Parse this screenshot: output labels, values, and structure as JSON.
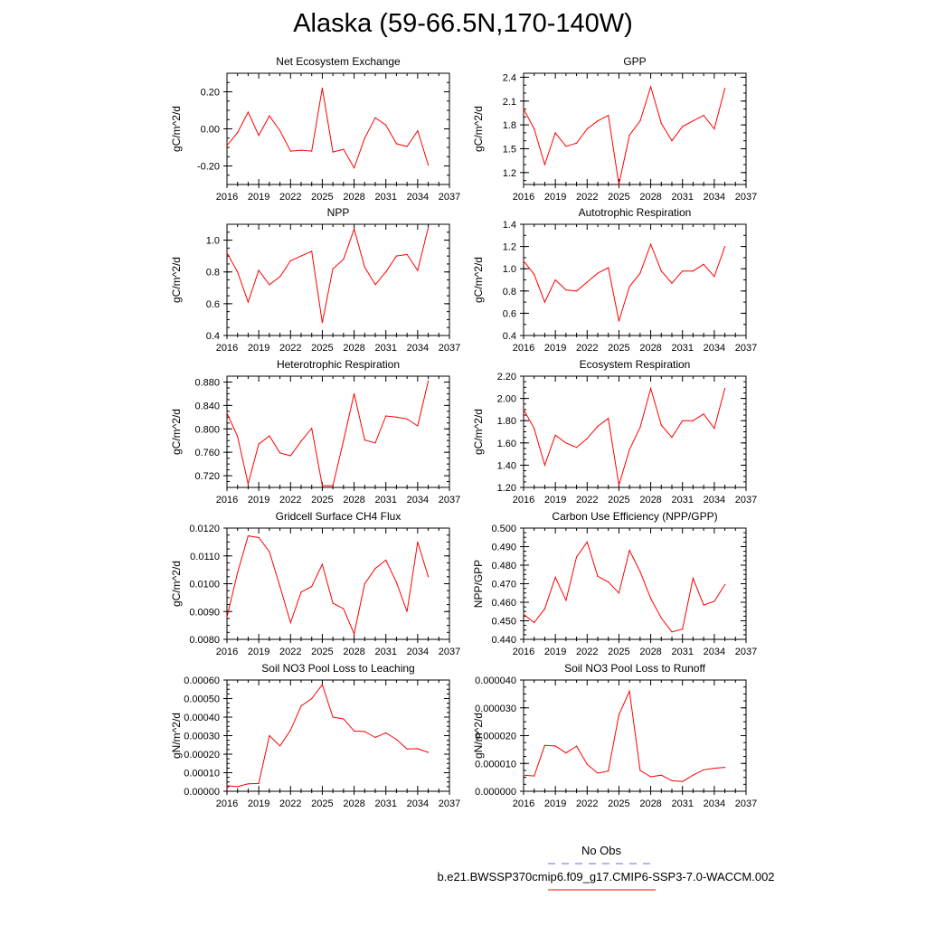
{
  "title": "Alaska (59-66.5N,170-140W)",
  "colors": {
    "series": "#ff0000",
    "obs": "#6a6ad4",
    "axis": "#000000"
  },
  "legend": {
    "obs_label": "No Obs",
    "run_label": "b.e21.BWSSP370cmip6.f09_g17.CMIP6-SSP3-7.0-WACCM.002"
  },
  "chart_data": [
    {
      "type": "line",
      "title": "Net Ecosystem Exchange",
      "ylabel": "gC/m^2/d",
      "xlim": [
        2016,
        2037
      ],
      "ylim": [
        -0.3,
        0.3
      ],
      "xticks": [
        "2016",
        "2019",
        "2022",
        "2025",
        "2028",
        "2031",
        "2034",
        "2037"
      ],
      "yticks": [
        -0.2,
        0.0,
        0.2
      ],
      "yticklabels": [
        "-0.20",
        "0.00",
        "0.20"
      ],
      "minor": 0.05,
      "x": [
        2016,
        2017,
        2018,
        2019,
        2020,
        2021,
        2022,
        2023,
        2024,
        2025,
        2026,
        2027,
        2028,
        2029,
        2030,
        2031,
        2032,
        2033,
        2034,
        2035
      ],
      "values": [
        -0.09,
        -0.02,
        0.09,
        -0.035,
        0.07,
        -0.01,
        -0.12,
        -0.115,
        -0.12,
        0.22,
        -0.125,
        -0.11,
        -0.21,
        -0.05,
        0.06,
        0.02,
        -0.08,
        -0.095,
        -0.01,
        -0.195
      ]
    },
    {
      "type": "line",
      "title": "GPP",
      "ylabel": "gC/m^2/d",
      "xlim": [
        2016,
        2037
      ],
      "ylim": [
        1.05,
        2.45
      ],
      "xticks": [
        "2016",
        "2019",
        "2022",
        "2025",
        "2028",
        "2031",
        "2034",
        "2037"
      ],
      "yticks": [
        1.2,
        1.5,
        1.8,
        2.1,
        2.4
      ],
      "yticklabels": [
        "1.2",
        "1.5",
        "1.8",
        "2.1",
        "2.4"
      ],
      "minor": 0.1,
      "x": [
        2016,
        2017,
        2018,
        2019,
        2020,
        2021,
        2022,
        2023,
        2024,
        2025,
        2026,
        2027,
        2028,
        2029,
        2030,
        2031,
        2032,
        2033,
        2034,
        2035
      ],
      "values": [
        2.0,
        1.75,
        1.3,
        1.7,
        1.53,
        1.57,
        1.75,
        1.85,
        1.92,
        1.05,
        1.67,
        1.85,
        2.28,
        1.82,
        1.6,
        1.78,
        1.85,
        1.92,
        1.75,
        2.26
      ]
    },
    {
      "type": "line",
      "title": "NPP",
      "ylabel": "gC/m^2/d",
      "xlim": [
        2016,
        2037
      ],
      "ylim": [
        0.4,
        1.1
      ],
      "xticks": [
        "2016",
        "2019",
        "2022",
        "2025",
        "2028",
        "2031",
        "2034",
        "2037"
      ],
      "yticks": [
        0.4,
        0.6,
        0.8,
        1.0
      ],
      "yticklabels": [
        "0.4",
        "0.6",
        "0.8",
        "1.0"
      ],
      "minor": 0.05,
      "x": [
        2016,
        2017,
        2018,
        2019,
        2020,
        2021,
        2022,
        2023,
        2024,
        2025,
        2026,
        2027,
        2028,
        2029,
        2030,
        2031,
        2032,
        2033,
        2034,
        2035
      ],
      "values": [
        0.92,
        0.8,
        0.61,
        0.81,
        0.72,
        0.77,
        0.87,
        0.9,
        0.93,
        0.48,
        0.82,
        0.88,
        1.07,
        0.83,
        0.72,
        0.8,
        0.9,
        0.91,
        0.81,
        1.08
      ]
    },
    {
      "type": "line",
      "title": "Autotrophic Respiration",
      "ylabel": "gC/m^2/d",
      "xlim": [
        2016,
        2037
      ],
      "ylim": [
        0.4,
        1.4
      ],
      "xticks": [
        "2016",
        "2019",
        "2022",
        "2025",
        "2028",
        "2031",
        "2034",
        "2037"
      ],
      "yticks": [
        0.4,
        0.6,
        0.8,
        1.0,
        1.2,
        1.4
      ],
      "yticklabels": [
        "0.4",
        "0.6",
        "0.8",
        "1.0",
        "1.2",
        "1.4"
      ],
      "minor": 0.1,
      "x": [
        2016,
        2017,
        2018,
        2019,
        2020,
        2021,
        2022,
        2023,
        2024,
        2025,
        2026,
        2027,
        2028,
        2029,
        2030,
        2031,
        2032,
        2033,
        2034,
        2035
      ],
      "values": [
        1.07,
        0.95,
        0.7,
        0.9,
        0.81,
        0.8,
        0.88,
        0.96,
        1.01,
        0.53,
        0.84,
        0.96,
        1.22,
        0.98,
        0.87,
        0.98,
        0.98,
        1.04,
        0.93,
        1.2
      ]
    },
    {
      "type": "line",
      "title": "Heterotrophic Respiration",
      "ylabel": "gC/m^2/d",
      "xlim": [
        2016,
        2037
      ],
      "ylim": [
        0.7,
        0.89
      ],
      "xticks": [
        "2016",
        "2019",
        "2022",
        "2025",
        "2028",
        "2031",
        "2034",
        "2037"
      ],
      "yticks": [
        0.72,
        0.76,
        0.8,
        0.84,
        0.88
      ],
      "yticklabels": [
        "0.720",
        "0.760",
        "0.800",
        "0.840",
        "0.880"
      ],
      "minor": 0.01,
      "x": [
        2016,
        2017,
        2018,
        2019,
        2020,
        2021,
        2022,
        2023,
        2024,
        2025,
        2026,
        2027,
        2028,
        2029,
        2030,
        2031,
        2032,
        2033,
        2034,
        2035
      ],
      "values": [
        0.827,
        0.787,
        0.706,
        0.774,
        0.788,
        0.759,
        0.754,
        0.779,
        0.801,
        0.703,
        0.703,
        0.78,
        0.86,
        0.781,
        0.776,
        0.822,
        0.82,
        0.817,
        0.805,
        0.882
      ]
    },
    {
      "type": "line",
      "title": "Ecosystem Respiration",
      "ylabel": "gC/m^2/d",
      "xlim": [
        2016,
        2037
      ],
      "ylim": [
        1.2,
        2.2
      ],
      "xticks": [
        "2016",
        "2019",
        "2022",
        "2025",
        "2028",
        "2031",
        "2034",
        "2037"
      ],
      "yticks": [
        1.2,
        1.4,
        1.6,
        1.8,
        2.0,
        2.2
      ],
      "yticklabels": [
        "1.20",
        "1.40",
        "1.60",
        "1.80",
        "2.00",
        "2.20"
      ],
      "minor": 0.05,
      "x": [
        2016,
        2017,
        2018,
        2019,
        2020,
        2021,
        2022,
        2023,
        2024,
        2025,
        2026,
        2027,
        2028,
        2029,
        2030,
        2031,
        2032,
        2033,
        2034,
        2035
      ],
      "values": [
        1.9,
        1.73,
        1.4,
        1.67,
        1.6,
        1.56,
        1.64,
        1.75,
        1.82,
        1.22,
        1.54,
        1.74,
        2.09,
        1.76,
        1.65,
        1.8,
        1.8,
        1.86,
        1.73,
        2.09
      ]
    },
    {
      "type": "line",
      "title": "Gridcell Surface CH4 Flux",
      "ylabel": "gC/m^2/d",
      "xlim": [
        2016,
        2037
      ],
      "ylim": [
        0.008,
        0.012
      ],
      "xticks": [
        "2016",
        "2019",
        "2022",
        "2025",
        "2028",
        "2031",
        "2034",
        "2037"
      ],
      "yticks": [
        0.008,
        0.009,
        0.01,
        0.011,
        0.012
      ],
      "yticklabels": [
        "0.0080",
        "0.0090",
        "0.0100",
        "0.0110",
        "0.0120"
      ],
      "minor": 0.00025,
      "x": [
        2016,
        2017,
        2018,
        2019,
        2020,
        2021,
        2022,
        2023,
        2024,
        2025,
        2026,
        2027,
        2028,
        2029,
        2030,
        2031,
        2032,
        2033,
        2034,
        2035
      ],
      "values": [
        0.0088,
        0.0104,
        0.01172,
        0.01166,
        0.01115,
        0.0099,
        0.0086,
        0.0097,
        0.0099,
        0.0107,
        0.0093,
        0.0091,
        0.0082,
        0.01,
        0.01055,
        0.01085,
        0.01005,
        0.009,
        0.0115,
        0.01025
      ]
    },
    {
      "type": "line",
      "title": "Carbon Use Efficiency (NPP/GPP)",
      "ylabel": "NPP/GPP",
      "xlim": [
        2016,
        2037
      ],
      "ylim": [
        0.44,
        0.5
      ],
      "xticks": [
        "2016",
        "2019",
        "2022",
        "2025",
        "2028",
        "2031",
        "2034",
        "2037"
      ],
      "yticks": [
        0.44,
        0.45,
        0.46,
        0.47,
        0.48,
        0.49,
        0.5
      ],
      "yticklabels": [
        "0.440",
        "0.450",
        "0.460",
        "0.470",
        "0.480",
        "0.490",
        "0.500"
      ],
      "minor": 0.0025,
      "x": [
        2016,
        2017,
        2018,
        2019,
        2020,
        2021,
        2022,
        2023,
        2024,
        2025,
        2026,
        2027,
        2028,
        2029,
        2030,
        2031,
        2032,
        2033,
        2034,
        2035
      ],
      "values": [
        0.4535,
        0.449,
        0.4565,
        0.4735,
        0.461,
        0.4845,
        0.4925,
        0.474,
        0.471,
        0.465,
        0.488,
        0.4765,
        0.462,
        0.4515,
        0.444,
        0.4455,
        0.473,
        0.4585,
        0.4605,
        0.4695
      ]
    },
    {
      "type": "line",
      "title": "Soil NO3 Pool Loss to Leaching",
      "ylabel": "gN/m^2/d",
      "xlim": [
        2016,
        2037
      ],
      "ylim": [
        0,
        0.0006
      ],
      "xticks": [
        "2016",
        "2019",
        "2022",
        "2025",
        "2028",
        "2031",
        "2034",
        "2037"
      ],
      "yticks": [
        0,
        0.0001,
        0.0002,
        0.0003,
        0.0004,
        0.0005,
        0.0006
      ],
      "yticklabels": [
        "0.00000",
        "0.00010",
        "0.00020",
        "0.00030",
        "0.00040",
        "0.00050",
        "0.00060"
      ],
      "minor": 2.5e-05,
      "x": [
        2016,
        2017,
        2018,
        2019,
        2020,
        2021,
        2022,
        2023,
        2024,
        2025,
        2026,
        2027,
        2028,
        2029,
        2030,
        2031,
        2032,
        2033,
        2034,
        2035
      ],
      "values": [
        3e-05,
        2.5e-05,
        4e-05,
        4.2e-05,
        0.0003,
        0.000245,
        0.00033,
        0.00046,
        0.0005,
        0.000575,
        0.0004,
        0.00039,
        0.000325,
        0.000322,
        0.00029,
        0.000315,
        0.00028,
        0.000228,
        0.00023,
        0.00021
      ]
    },
    {
      "type": "line",
      "title": "Soil NO3 Pool Loss to Runoff",
      "ylabel": "gN/m^2/d",
      "xlim": [
        2016,
        2037
      ],
      "ylim": [
        0,
        4e-05
      ],
      "xticks": [
        "2016",
        "2019",
        "2022",
        "2025",
        "2028",
        "2031",
        "2034",
        "2037"
      ],
      "yticks": [
        0,
        1e-05,
        2e-05,
        3e-05,
        4e-05
      ],
      "yticklabels": [
        "0.000000",
        "0.000010",
        "0.000020",
        "0.000030",
        "0.000040"
      ],
      "minor": 2.5e-06,
      "x": [
        2016,
        2017,
        2018,
        2019,
        2020,
        2021,
        2022,
        2023,
        2024,
        2025,
        2026,
        2027,
        2028,
        2029,
        2030,
        2031,
        2032,
        2033,
        2034,
        2035
      ],
      "values": [
        5.8e-06,
        5.5e-06,
        1.65e-05,
        1.63e-05,
        1.38e-05,
        1.62e-05,
        9.7e-06,
        6.5e-06,
        7.3e-06,
        2.75e-05,
        3.6e-05,
        7.5e-06,
        5.2e-06,
        5.8e-06,
        3.8e-06,
        3.5e-06,
        5.8e-06,
        7.7e-06,
        8.3e-06,
        8.6e-06
      ]
    }
  ]
}
